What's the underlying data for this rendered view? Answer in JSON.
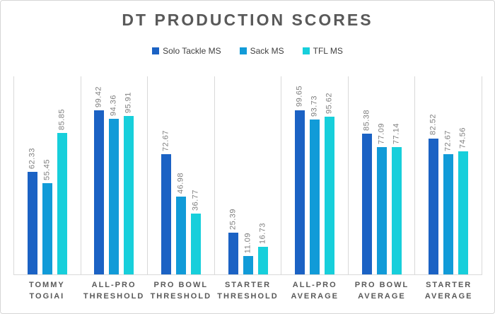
{
  "title": "DT PRODUCTION SCORES",
  "legend": [
    {
      "label": "Solo Tackle MS",
      "color": "#1b62c4"
    },
    {
      "label": "Sack MS",
      "color": "#119bd8"
    },
    {
      "label": "TFL MS",
      "color": "#17cfdb"
    }
  ],
  "colors": {
    "title_text": "#595959",
    "axis_text": "#595959",
    "data_label_text": "#7f7f7f",
    "gridline": "#d9d9d9",
    "frame_border": "#d6d6d6"
  },
  "chart_data": {
    "type": "bar",
    "title": "DT PRODUCTION SCORES",
    "categories": [
      "TOMMY TOGIAI",
      "ALL-PRO THRESHOLD",
      "PRO BOWL THRESHOLD",
      "STARTER THRESHOLD",
      "ALL-PRO AVERAGE",
      "PRO BOWL AVERAGE",
      "STARTER AVERAGE"
    ],
    "category_lines": [
      [
        "TOMMY",
        "TOGIAI"
      ],
      [
        "ALL-PRO",
        "THRESHOLD"
      ],
      [
        "PRO BOWL",
        "THRESHOLD"
      ],
      [
        "STARTER",
        "THRESHOLD"
      ],
      [
        "ALL-PRO",
        "AVERAGE"
      ],
      [
        "PRO BOWL",
        "AVERAGE"
      ],
      [
        "STARTER",
        "AVERAGE"
      ]
    ],
    "series": [
      {
        "name": "Solo Tackle MS",
        "color": "#1b62c4",
        "values": [
          62.33,
          99.42,
          72.67,
          25.39,
          99.65,
          85.38,
          82.52
        ]
      },
      {
        "name": "Sack MS",
        "color": "#119bd8",
        "values": [
          55.45,
          94.36,
          46.98,
          11.09,
          93.73,
          77.09,
          72.67
        ]
      },
      {
        "name": "TFL MS",
        "color": "#17cfdb",
        "values": [
          85.85,
          95.91,
          36.77,
          16.73,
          95.62,
          77.14,
          74.56
        ]
      }
    ],
    "xlabel": "",
    "ylabel": "",
    "ylim": [
      0,
      120
    ],
    "grid": "vertical-category-separators",
    "legend_position": "top",
    "data_labels": "rotated-90-above-bars"
  }
}
